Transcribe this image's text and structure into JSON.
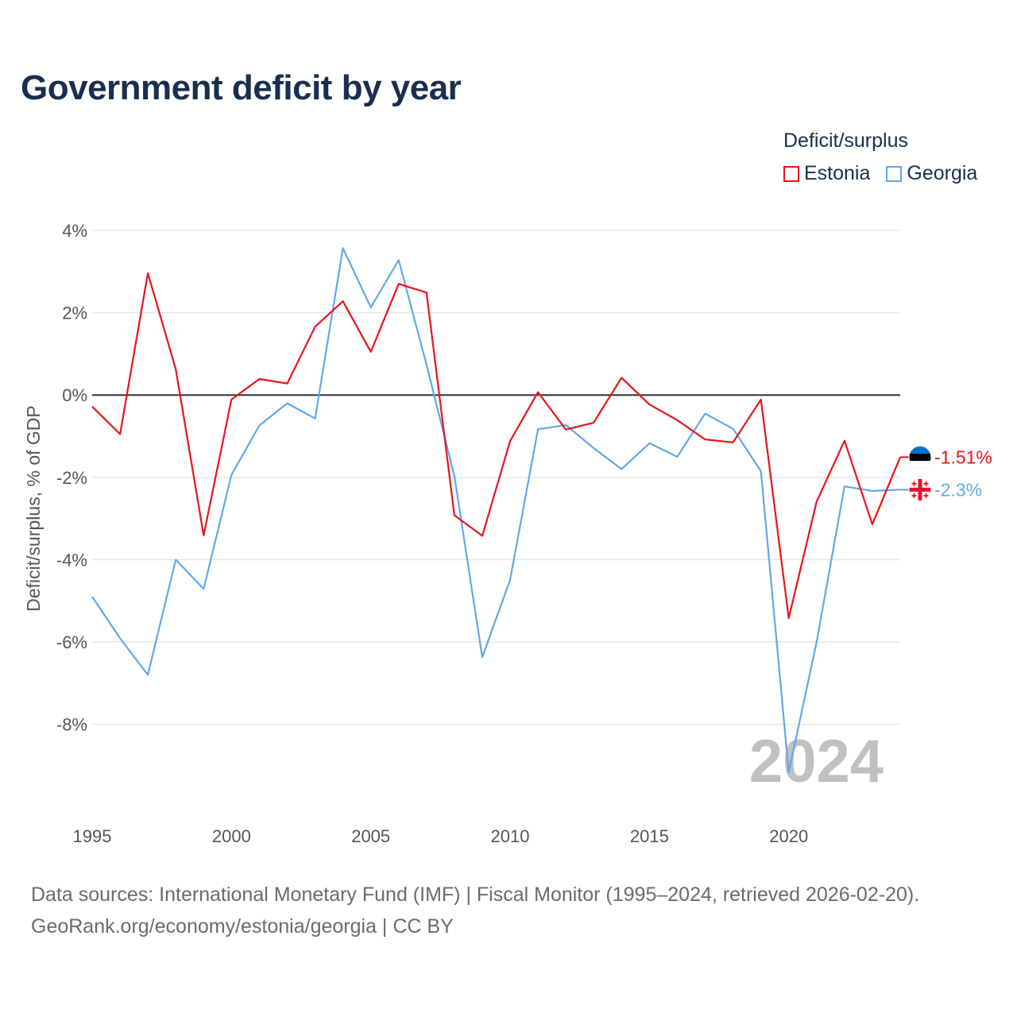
{
  "title": "Government deficit by year",
  "legend": {
    "title": "Deficit/surplus",
    "items": [
      {
        "name": "Estonia",
        "color": "#e8141b"
      },
      {
        "name": "Georgia",
        "color": "#61a8e8"
      }
    ]
  },
  "footer": {
    "line1": "Data sources: International Monetary Fund (IMF) | Fiscal Monitor (1995–2024, retrieved 2026-02-20).",
    "line2": "GeoRank.org/economy/estonia/georgia | CC BY"
  },
  "chart_data": {
    "type": "line",
    "title": "Government deficit by year",
    "xlabel": "",
    "ylabel": "Deficit/surplus, % of GDP",
    "xlim": [
      1995,
      2024
    ],
    "ylim": [
      -10,
      4.3
    ],
    "x_ticks": [
      1995,
      2000,
      2005,
      2010,
      2015,
      2020
    ],
    "x_tick_labels": [
      "1995",
      "2000",
      "2005",
      "2010",
      "2015",
      "2020"
    ],
    "y_ticks": [
      4,
      2,
      0,
      -2,
      -4,
      -6,
      -8
    ],
    "y_tick_labels": [
      "4%",
      "2%",
      "0%",
      "-2%",
      "-4%",
      "-6%",
      "-8%"
    ],
    "grid": true,
    "zero_line": true,
    "watermark": "2024",
    "x": [
      1995,
      1996,
      1997,
      1998,
      1999,
      2000,
      2001,
      2002,
      2003,
      2004,
      2005,
      2006,
      2007,
      2008,
      2009,
      2010,
      2011,
      2012,
      2013,
      2014,
      2015,
      2016,
      2017,
      2018,
      2019,
      2020,
      2021,
      2022,
      2023,
      2024
    ],
    "series": [
      {
        "name": "Estonia",
        "color": "#e8141b",
        "end_label": "-1.51%",
        "values": [
          -0.28,
          -0.95,
          2.96,
          0.63,
          -3.41,
          -0.11,
          0.39,
          0.28,
          1.66,
          2.28,
          1.05,
          2.7,
          2.49,
          -2.92,
          -3.42,
          -1.12,
          0.07,
          -0.84,
          -0.67,
          0.42,
          -0.23,
          -0.61,
          -1.08,
          -1.15,
          -0.11,
          -5.42,
          -2.59,
          -1.11,
          -3.14,
          -1.51
        ]
      },
      {
        "name": "Georgia",
        "color": "#61a8e8",
        "end_label": "-2.3%",
        "values": [
          -4.9,
          -5.91,
          -6.8,
          -4.0,
          -4.71,
          -1.94,
          -0.74,
          -0.2,
          -0.57,
          3.57,
          2.13,
          3.28,
          0.74,
          -1.97,
          -6.37,
          -4.49,
          -0.83,
          -0.73,
          -1.29,
          -1.8,
          -1.17,
          -1.5,
          -0.45,
          -0.82,
          -1.85,
          -9.17,
          -6.0,
          -2.22,
          -2.33,
          -2.3
        ]
      }
    ]
  }
}
